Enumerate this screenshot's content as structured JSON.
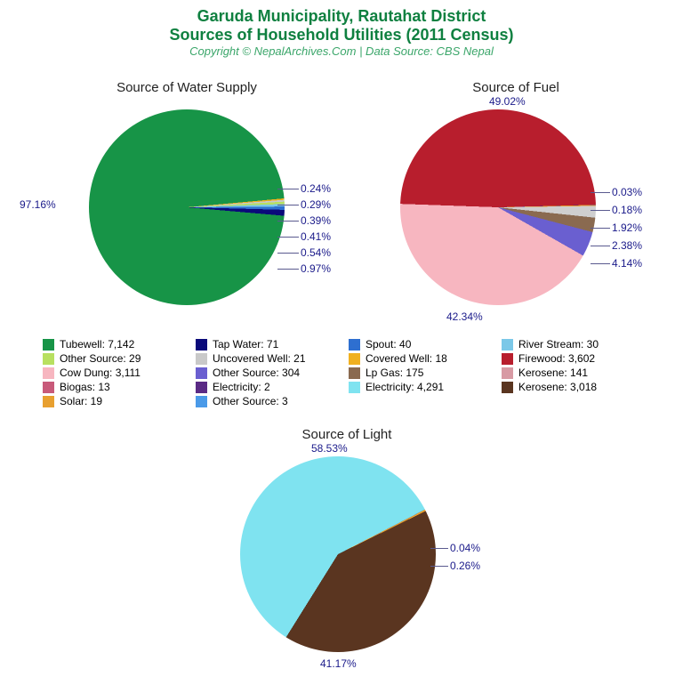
{
  "header": {
    "title1": "Garuda Municipality, Rautahat District",
    "title2": "Sources of Household Utilities (2011 Census)",
    "title_color": "#0f8040",
    "title_fontsize": 18,
    "subtitle": "Copyright © NepalArchives.Com | Data Source: CBS Nepal",
    "subtitle_color": "#3ba66a",
    "subtitle_fontsize": 13
  },
  "label_color": "#1a1a8a",
  "label_fontsize": 12,
  "chart_title_color": "#222222",
  "chart_title_fontsize": 15,
  "background": "#ffffff",
  "charts": {
    "water": {
      "title": "Source of Water Supply",
      "diameter": 220,
      "slices": [
        {
          "label": "97.16%",
          "pct": 97.16,
          "color": "#179447"
        },
        {
          "label": "0.24%",
          "pct": 0.24,
          "color": "#f0b020"
        },
        {
          "label": "0.29%",
          "pct": 0.29,
          "color": "#c9c9c9"
        },
        {
          "label": "0.39%",
          "pct": 0.39,
          "color": "#b8e060"
        },
        {
          "label": "0.41%",
          "pct": 0.41,
          "color": "#7bc8e8"
        },
        {
          "label": "0.54%",
          "pct": 0.54,
          "color": "#2e6fd0"
        },
        {
          "label": "0.97%",
          "pct": 0.97,
          "color": "#0a0a7a"
        }
      ],
      "big_label": "97.16%",
      "side_labels": [
        "0.24%",
        "0.29%",
        "0.39%",
        "0.41%",
        "0.54%",
        "0.97%"
      ]
    },
    "fuel": {
      "title": "Source of Fuel",
      "diameter": 220,
      "slices": [
        {
          "label": "49.02%",
          "pct": 49.02,
          "color": "#b81e2d"
        },
        {
          "label": "0.03%",
          "pct": 0.03,
          "color": "#5a2a85"
        },
        {
          "label": "0.18%",
          "pct": 0.18,
          "color": "#e89a2f"
        },
        {
          "label": "1.92%",
          "pct": 1.92,
          "color": "#cfcfcf"
        },
        {
          "label": "2.38%",
          "pct": 2.38,
          "color": "#8a6a50"
        },
        {
          "label": "4.14%",
          "pct": 4.14,
          "color": "#6a5fd0"
        },
        {
          "label": "42.34%",
          "pct": 42.34,
          "color": "#f7b6c0"
        }
      ],
      "top_label": "49.02%",
      "bottom_label": "42.34%",
      "side_labels": [
        "0.03%",
        "0.18%",
        "1.92%",
        "2.38%",
        "4.14%"
      ]
    },
    "light": {
      "title": "Source of Light",
      "diameter": 220,
      "slices": [
        {
          "label": "58.53%",
          "pct": 58.53,
          "color": "#7fe3f0"
        },
        {
          "label": "0.04%",
          "pct": 0.04,
          "color": "#4a9ae8"
        },
        {
          "label": "0.26%",
          "pct": 0.26,
          "color": "#e8a030"
        },
        {
          "label": "41.17%",
          "pct": 41.17,
          "color": "#5a3520"
        }
      ],
      "top_label": "58.53%",
      "bottom_label": "41.17%",
      "side_labels": [
        "0.04%",
        "0.26%"
      ]
    }
  },
  "legend": [
    {
      "color": "#179447",
      "text": "Tubewell: 7,142"
    },
    {
      "color": "#0a0a7a",
      "text": "Tap Water: 71"
    },
    {
      "color": "#2e6fd0",
      "text": "Spout: 40"
    },
    {
      "color": "#7bc8e8",
      "text": "River Stream: 30"
    },
    {
      "color": "#b8e060",
      "text": "Other Source: 29"
    },
    {
      "color": "#c9c9c9",
      "text": "Uncovered Well: 21"
    },
    {
      "color": "#f0b020",
      "text": "Covered Well: 18"
    },
    {
      "color": "#b81e2d",
      "text": "Firewood: 3,602"
    },
    {
      "color": "#f7b6c0",
      "text": "Cow Dung: 3,111"
    },
    {
      "color": "#6a5fd0",
      "text": "Other Source: 304"
    },
    {
      "color": "#8a6a50",
      "text": "Lp Gas: 175"
    },
    {
      "color": "#d89aa4",
      "text": "Kerosene: 141"
    },
    {
      "color": "#c85a7a",
      "text": "Biogas: 13"
    },
    {
      "color": "#5a2a85",
      "text": "Electricity: 2"
    },
    {
      "color": "#7fe3f0",
      "text": "Electricity: 4,291"
    },
    {
      "color": "#5a3520",
      "text": "Kerosene: 3,018"
    },
    {
      "color": "#e8a030",
      "text": "Solar: 19"
    },
    {
      "color": "#4a9ae8",
      "text": "Other Source: 3"
    }
  ]
}
